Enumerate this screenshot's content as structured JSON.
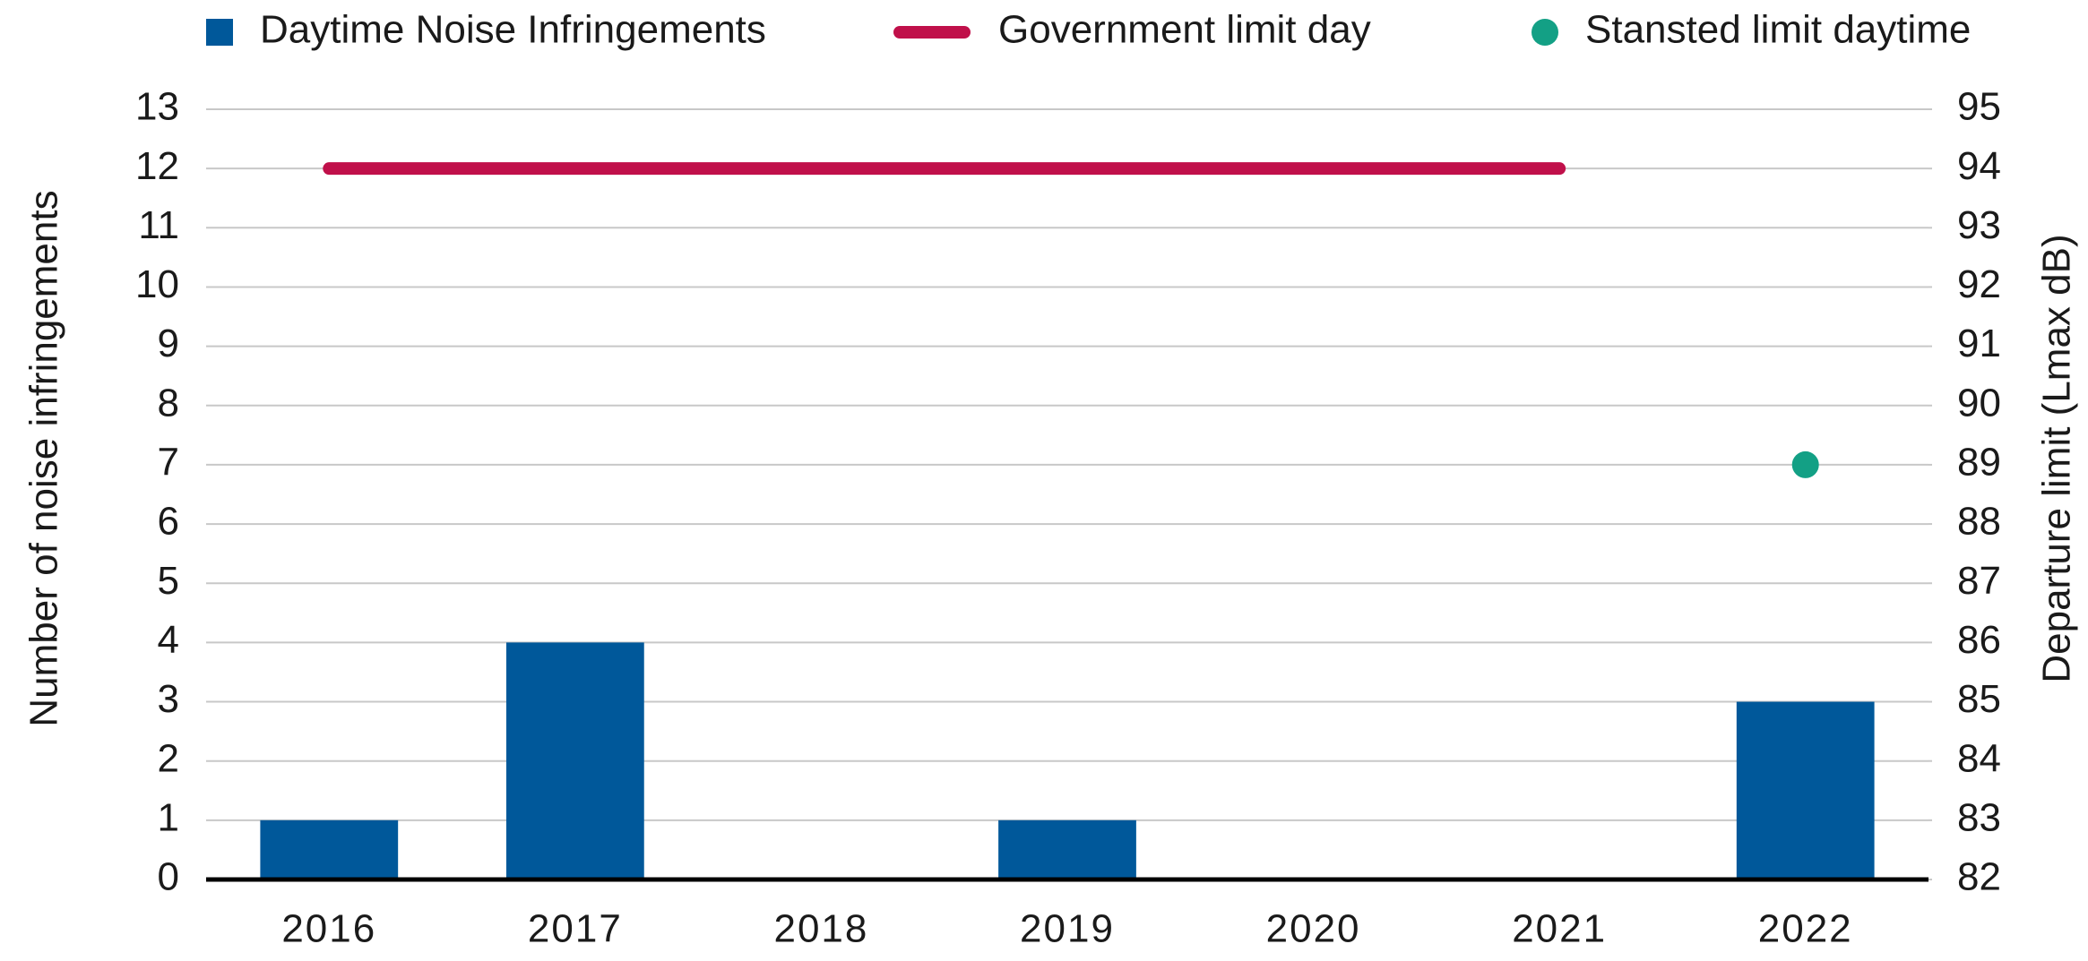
{
  "chart_data": {
    "type": "bar",
    "categories": [
      "2016",
      "2017",
      "2018",
      "2019",
      "2020",
      "2021",
      "2022"
    ],
    "series": [
      {
        "name": "Daytime Noise Infringements",
        "type": "bar",
        "color": "#00589a",
        "values": [
          1,
          4,
          0,
          1,
          0,
          0,
          3
        ]
      },
      {
        "name": "Government limit day",
        "type": "line",
        "axis": "y2",
        "color": "#c0104a",
        "values": [
          94,
          94,
          94,
          94,
          94,
          94,
          null
        ]
      },
      {
        "name": "Stansted limit daytime",
        "type": "scatter",
        "axis": "y2",
        "color": "#13a085",
        "values": [
          null,
          null,
          null,
          null,
          null,
          null,
          89
        ]
      }
    ],
    "y_label": "Number of  noise infringements",
    "y2_label": "Departure limit (Lmax dB)",
    "ylim": [
      0,
      13
    ],
    "yticks": [
      0,
      1,
      2,
      3,
      4,
      5,
      6,
      7,
      8,
      9,
      10,
      11,
      12,
      13
    ],
    "y2lim": [
      82,
      95
    ],
    "y2ticks": [
      82,
      83,
      84,
      85,
      86,
      87,
      88,
      89,
      90,
      91,
      92,
      93,
      94,
      95
    ],
    "grid": true,
    "legend": "top"
  }
}
